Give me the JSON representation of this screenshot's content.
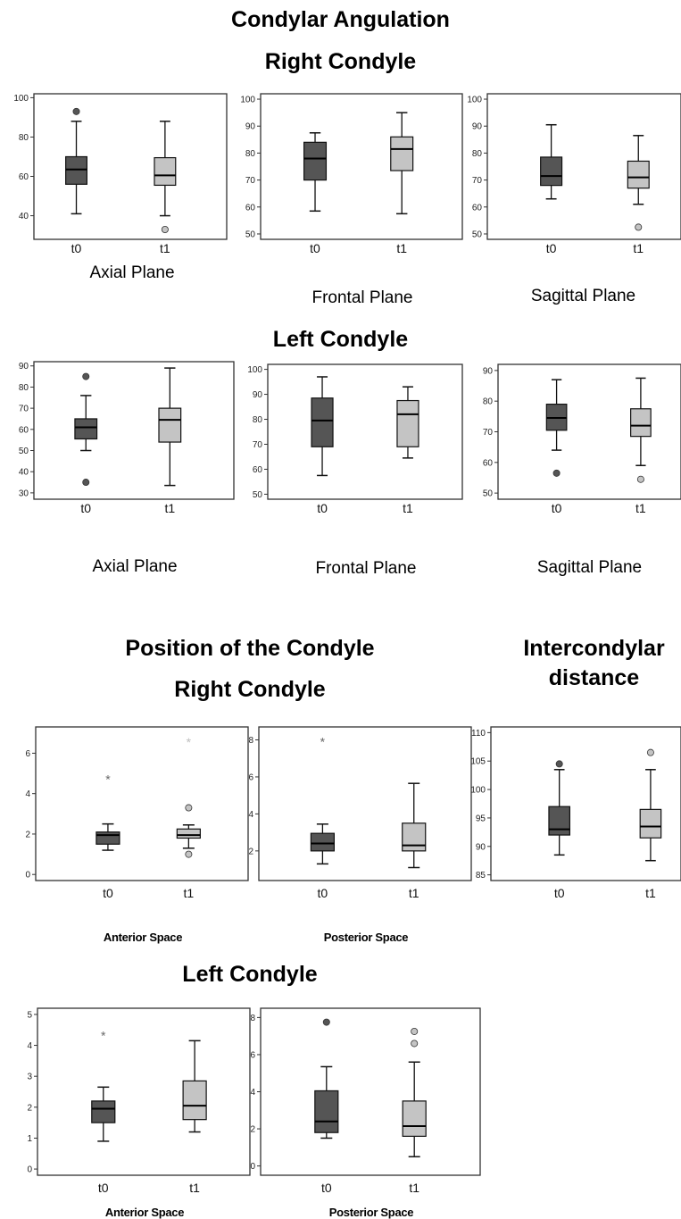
{
  "headings": {
    "main": "Condylar Angulation",
    "right_condyle": "Right Condyle",
    "left_condyle": "Left Condyle",
    "position": "Position of the Condyle",
    "position_right": "Right Condyle",
    "intercondylar_line1": "Intercondylar",
    "intercondylar_line2": "distance",
    "position_left": "Left Condyle"
  },
  "colors": {
    "t0_fill": "#555555",
    "t1_fill": "#c4c4c4",
    "frame": "#333333"
  },
  "chart_data": [
    {
      "id": "ang_right_axial",
      "type": "box",
      "label": "Axial Plane",
      "categories": [
        "t0",
        "t1"
      ],
      "ylim": [
        28,
        102
      ],
      "yticks": [
        40,
        60,
        80,
        100
      ],
      "boxes": [
        {
          "whisker_low": 41,
          "q1": 56,
          "median": 63.5,
          "q3": 70,
          "whisker_high": 88,
          "outliers": [
            {
              "value": 93,
              "marker": "o"
            }
          ]
        },
        {
          "whisker_low": 40,
          "q1": 55.5,
          "median": 60.5,
          "q3": 69.5,
          "whisker_high": 88,
          "outliers": [
            {
              "value": 33,
              "marker": "o"
            }
          ]
        }
      ]
    },
    {
      "id": "ang_right_frontal",
      "type": "box",
      "label": "Frontal Plane",
      "categories": [
        "t0",
        "t1"
      ],
      "ylim": [
        48,
        102
      ],
      "yticks": [
        50,
        60,
        70,
        80,
        90,
        100
      ],
      "boxes": [
        {
          "whisker_low": 58.5,
          "q1": 70,
          "median": 78,
          "q3": 84,
          "whisker_high": 87.5,
          "outliers": []
        },
        {
          "whisker_low": 57.5,
          "q1": 73.5,
          "median": 81.5,
          "q3": 86,
          "whisker_high": 95,
          "outliers": []
        }
      ]
    },
    {
      "id": "ang_right_sagittal",
      "type": "box",
      "label": "Sagittal Plane",
      "categories": [
        "t0",
        "t1"
      ],
      "ylim": [
        48,
        102
      ],
      "yticks": [
        50,
        60,
        70,
        80,
        90,
        100
      ],
      "boxes": [
        {
          "whisker_low": 63,
          "q1": 68,
          "median": 71.5,
          "q3": 78.5,
          "whisker_high": 90.5,
          "outliers": []
        },
        {
          "whisker_low": 61,
          "q1": 67,
          "median": 71,
          "q3": 77,
          "whisker_high": 86.5,
          "outliers": [
            {
              "value": 52.5,
              "marker": "o"
            }
          ]
        }
      ]
    },
    {
      "id": "ang_left_axial",
      "type": "box",
      "label": "Axial Plane",
      "categories": [
        "t0",
        "t1"
      ],
      "ylim": [
        27,
        92
      ],
      "yticks": [
        30,
        40,
        50,
        60,
        70,
        80,
        90
      ],
      "boxes": [
        {
          "whisker_low": 50,
          "q1": 55.5,
          "median": 61,
          "q3": 65,
          "whisker_high": 76,
          "outliers": [
            {
              "value": 85,
              "marker": "o"
            },
            {
              "value": 35,
              "marker": "o"
            }
          ]
        },
        {
          "whisker_low": 33.5,
          "q1": 54,
          "median": 64.5,
          "q3": 70,
          "whisker_high": 89,
          "outliers": []
        }
      ]
    },
    {
      "id": "ang_left_frontal",
      "type": "box",
      "label": "Frontal Plane",
      "categories": [
        "t0",
        "t1"
      ],
      "ylim": [
        48,
        102
      ],
      "yticks": [
        50,
        60,
        70,
        80,
        90,
        100
      ],
      "boxes": [
        {
          "whisker_low": 57.5,
          "q1": 69,
          "median": 79.5,
          "q3": 88.5,
          "whisker_high": 97,
          "outliers": []
        },
        {
          "whisker_low": 64.5,
          "q1": 69,
          "median": 82,
          "q3": 87.5,
          "whisker_high": 93,
          "outliers": []
        }
      ]
    },
    {
      "id": "ang_left_sagittal",
      "type": "box",
      "label": "Sagittal Plane",
      "categories": [
        "t0",
        "t1"
      ],
      "ylim": [
        48,
        92
      ],
      "yticks": [
        50,
        60,
        70,
        80,
        90
      ],
      "boxes": [
        {
          "whisker_low": 64,
          "q1": 70.5,
          "median": 74.5,
          "q3": 79,
          "whisker_high": 87,
          "outliers": [
            {
              "value": 56.5,
              "marker": "o"
            }
          ]
        },
        {
          "whisker_low": 59,
          "q1": 68.5,
          "median": 72,
          "q3": 77.5,
          "whisker_high": 87.5,
          "outliers": [
            {
              "value": 54.5,
              "marker": "o"
            }
          ]
        }
      ]
    },
    {
      "id": "pos_right_anterior",
      "type": "box",
      "label": "Anterior Space",
      "categories": [
        "t0",
        "t1"
      ],
      "ylim": [
        -0.3,
        7.3
      ],
      "yticks": [
        0,
        2,
        4,
        6
      ],
      "boxes": [
        {
          "whisker_low": 1.2,
          "q1": 1.5,
          "median": 1.95,
          "q3": 2.1,
          "whisker_high": 2.5,
          "outliers": [
            {
              "value": 4.75,
              "marker": "*"
            }
          ]
        },
        {
          "whisker_low": 1.3,
          "q1": 1.8,
          "median": 1.95,
          "q3": 2.25,
          "whisker_high": 2.45,
          "outliers": [
            {
              "value": 6.6,
              "marker": "*"
            },
            {
              "value": 3.3,
              "marker": "o"
            },
            {
              "value": 1.0,
              "marker": "o"
            }
          ]
        }
      ]
    },
    {
      "id": "pos_right_posterior",
      "type": "box",
      "label": "Posterior Space",
      "categories": [
        "t0",
        "t1"
      ],
      "ylim": [
        0.4,
        8.7
      ],
      "yticks": [
        2,
        4,
        6,
        8
      ],
      "boxes": [
        {
          "whisker_low": 1.3,
          "q1": 2.0,
          "median": 2.4,
          "q3": 2.95,
          "whisker_high": 3.45,
          "outliers": [
            {
              "value": 7.95,
              "marker": "*"
            }
          ]
        },
        {
          "whisker_low": 1.1,
          "q1": 2.0,
          "median": 2.3,
          "q3": 3.5,
          "whisker_high": 5.65,
          "outliers": []
        }
      ]
    },
    {
      "id": "intercondylar",
      "type": "box",
      "label": "",
      "categories": [
        "t0",
        "t1"
      ],
      "ylim": [
        84,
        111
      ],
      "yticks": [
        85,
        90,
        95,
        100,
        105,
        110
      ],
      "boxes": [
        {
          "whisker_low": 88.5,
          "q1": 92,
          "median": 93,
          "q3": 97,
          "whisker_high": 103.5,
          "outliers": [
            {
              "value": 104.5,
              "marker": "o"
            }
          ]
        },
        {
          "whisker_low": 87.5,
          "q1": 91.5,
          "median": 93.5,
          "q3": 96.5,
          "whisker_high": 103.5,
          "outliers": [
            {
              "value": 106.5,
              "marker": "o"
            }
          ]
        }
      ]
    },
    {
      "id": "pos_left_anterior",
      "type": "box",
      "label": "Anterior Space",
      "categories": [
        "t0",
        "t1"
      ],
      "ylim": [
        -0.2,
        5.2
      ],
      "yticks": [
        0,
        1,
        2,
        3,
        4,
        5
      ],
      "boxes": [
        {
          "whisker_low": 0.9,
          "q1": 1.5,
          "median": 1.95,
          "q3": 2.2,
          "whisker_high": 2.65,
          "outliers": [
            {
              "value": 4.35,
              "marker": "*"
            }
          ]
        },
        {
          "whisker_low": 1.2,
          "q1": 1.6,
          "median": 2.05,
          "q3": 2.85,
          "whisker_high": 4.15,
          "outliers": []
        }
      ]
    },
    {
      "id": "pos_left_posterior",
      "type": "box",
      "label": "Posterior Space",
      "categories": [
        "t0",
        "t1"
      ],
      "ylim": [
        -0.5,
        8.5
      ],
      "yticks": [
        0,
        2,
        4,
        6,
        8
      ],
      "boxes": [
        {
          "whisker_low": 1.5,
          "q1": 1.8,
          "median": 2.4,
          "q3": 4.05,
          "whisker_high": 5.35,
          "outliers": [
            {
              "value": 7.75,
              "marker": "o"
            }
          ]
        },
        {
          "whisker_low": 0.5,
          "q1": 1.6,
          "median": 2.15,
          "q3": 3.5,
          "whisker_high": 5.6,
          "outliers": [
            {
              "value": 7.25,
              "marker": "o"
            },
            {
              "value": 6.6,
              "marker": "o"
            }
          ]
        }
      ]
    }
  ]
}
